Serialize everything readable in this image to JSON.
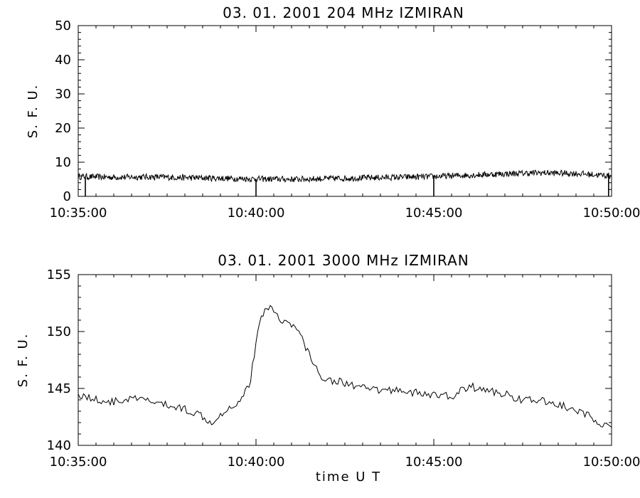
{
  "chart_data": [
    {
      "type": "line",
      "title": "03.  01.  2001    204 MHz    IZMIRAN",
      "xlabel": "",
      "ylabel": "S. F. U.",
      "xlim": [
        "10:35:00",
        "10:50:00"
      ],
      "x_ticks": [
        "10:35:00",
        "10:40:00",
        "10:45:00",
        "10:50:00"
      ],
      "ylim": [
        0,
        50
      ],
      "y_ticks": [
        0,
        10,
        20,
        30,
        40,
        50
      ],
      "grid": false,
      "x": [
        "10:35:00",
        "10:36:00",
        "10:37:00",
        "10:38:00",
        "10:39:00",
        "10:40:00",
        "10:41:00",
        "10:42:00",
        "10:43:00",
        "10:44:00",
        "10:45:00",
        "10:46:00",
        "10:47:00",
        "10:48:00",
        "10:49:00",
        "10:50:00"
      ],
      "series": [
        {
          "values": [
            5.8,
            5.6,
            5.7,
            5.5,
            5.3,
            5.1,
            5.0,
            5.2,
            5.4,
            5.6,
            5.8,
            6.2,
            6.6,
            6.9,
            6.7,
            6.0
          ]
        }
      ],
      "annotations": [
        "dropouts to 0 at ~10:35:12, 10:40:00, 10:45:00, 10:49:55"
      ]
    },
    {
      "type": "line",
      "title": "03.  01.  2001    3000 MHz    IZMIRAN",
      "xlabel": "time   U T",
      "ylabel": "S. F. U.",
      "xlim": [
        "10:35:00",
        "10:50:00"
      ],
      "x_ticks": [
        "10:35:00",
        "10:40:00",
        "10:45:00",
        "10:50:00"
      ],
      "ylim": [
        140,
        155
      ],
      "y_ticks": [
        140,
        145,
        150,
        155
      ],
      "grid": false,
      "x": [
        "10:35:00",
        "10:35:30",
        "10:36:00",
        "10:36:30",
        "10:37:00",
        "10:37:30",
        "10:38:00",
        "10:38:30",
        "10:38:45",
        "10:39:00",
        "10:39:30",
        "10:39:50",
        "10:40:00",
        "10:40:10",
        "10:40:20",
        "10:40:40",
        "10:41:00",
        "10:41:10",
        "10:41:30",
        "10:41:45",
        "10:42:00",
        "10:42:30",
        "10:43:00",
        "10:43:30",
        "10:44:00",
        "10:44:30",
        "10:45:00",
        "10:45:30",
        "10:46:00",
        "10:46:30",
        "10:47:00",
        "10:47:30",
        "10:48:00",
        "10:48:30",
        "10:49:00",
        "10:49:30",
        "10:50:00"
      ],
      "series": [
        {
          "values": [
            144.5,
            144.0,
            143.8,
            144.1,
            143.9,
            143.5,
            143.2,
            142.6,
            142.0,
            142.8,
            143.8,
            145.5,
            149.0,
            151.5,
            152.3,
            151.2,
            150.5,
            150.2,
            148.0,
            146.3,
            145.8,
            145.5,
            145.0,
            144.8,
            144.9,
            144.6,
            144.4,
            144.3,
            145.2,
            144.8,
            144.5,
            144.0,
            143.9,
            143.6,
            143.0,
            142.4,
            141.3
          ]
        }
      ]
    }
  ]
}
